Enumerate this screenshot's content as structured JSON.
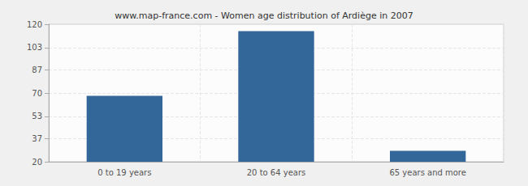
{
  "chart_data": {
    "type": "bar",
    "title": "www.map-france.com - Women age distribution of Ardiège in 2007",
    "categories": [
      "0 to 19 years",
      "20 to 64 years",
      "65 years and more"
    ],
    "values": [
      68,
      115,
      28
    ],
    "color": "#336699",
    "ylim": [
      20,
      120
    ],
    "yticks": [
      20,
      37,
      53,
      70,
      87,
      103,
      120
    ],
    "grid": true
  }
}
